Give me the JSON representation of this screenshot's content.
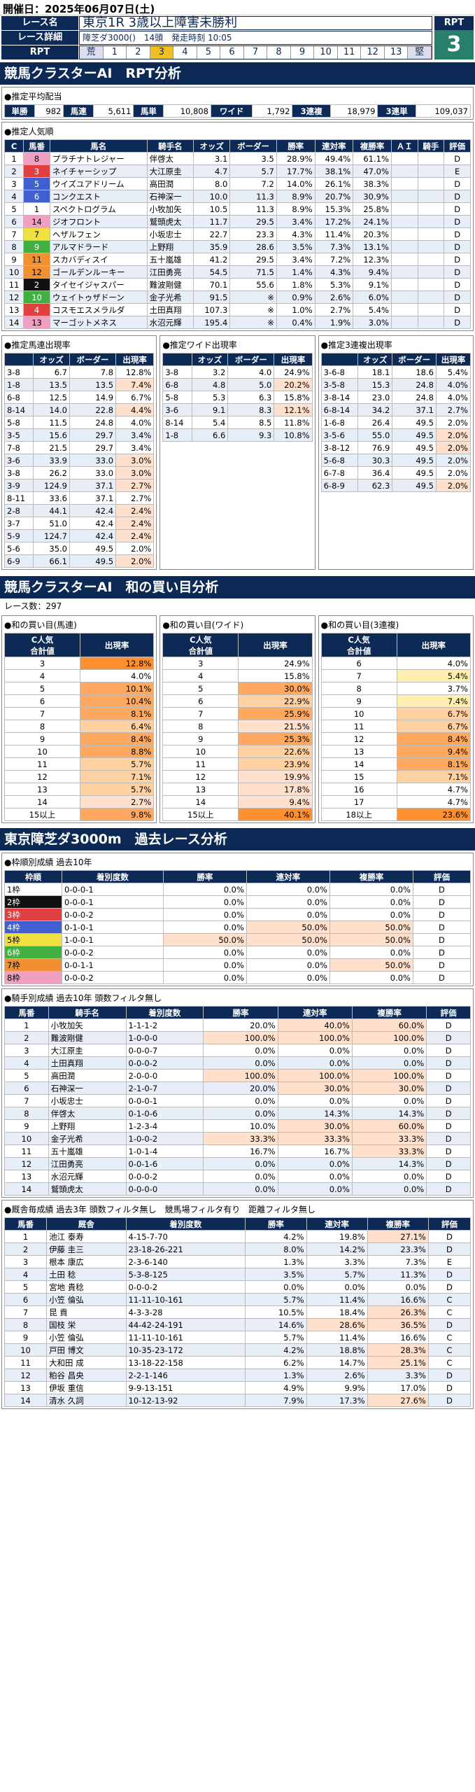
{
  "header": {
    "date": "開催日：2025年06月07日(土)"
  },
  "race": {
    "name_label": "レース名",
    "name": "東京1R 3歳以上障害未勝利",
    "detail_label": "レース詳細",
    "detail": "障芝ダ3000()　14頭　発走時刻 10:05",
    "rpt_label": "RPT",
    "rpt_cells": [
      "荒",
      "1",
      "2",
      "3",
      "4",
      "5",
      "6",
      "7",
      "8",
      "9",
      "10",
      "11",
      "12",
      "13",
      "堅"
    ],
    "rpt_value": "3"
  },
  "s1": {
    "title": "競馬クラスターAI　RPT分析"
  },
  "payout": {
    "title": "●推定平均配当",
    "items": [
      [
        "単勝",
        "982"
      ],
      [
        "馬連",
        "5,611"
      ],
      [
        "馬単",
        "10,808"
      ],
      [
        "ワイド",
        "1,792"
      ],
      [
        "3連複",
        "18,979"
      ],
      [
        "3連単",
        "109,037"
      ]
    ]
  },
  "pop": {
    "title": "●推定人気順",
    "headers": [
      "C",
      "馬番",
      "馬名",
      "騎手名",
      "オッズ",
      "ボーダー",
      "勝率",
      "連対率",
      "複勝率",
      "ＡＩ",
      "騎手",
      "評価"
    ],
    "rows": [
      [
        "1",
        "8",
        "プラチナトレジャー",
        "伴啓太",
        "3.1",
        "3.5",
        "28.9%",
        "49.4%",
        "61.1%",
        "",
        "",
        "D",
        "w8"
      ],
      [
        "2",
        "3",
        "ネイチャーシップ",
        "大江原圭",
        "4.7",
        "5.7",
        "17.7%",
        "38.1%",
        "47.0%",
        "",
        "",
        "E",
        "w3"
      ],
      [
        "3",
        "5",
        "ウイズユアドリーム",
        "高田潤",
        "8.0",
        "7.2",
        "14.0%",
        "26.1%",
        "38.3%",
        "",
        "",
        "D",
        "w4"
      ],
      [
        "4",
        "6",
        "コンクエスト",
        "石神深一",
        "10.0",
        "11.3",
        "8.9%",
        "20.7%",
        "30.9%",
        "",
        "",
        "D",
        "w4"
      ],
      [
        "5",
        "1",
        "スペクトログラム",
        "小牧加矢",
        "10.5",
        "11.3",
        "8.9%",
        "15.3%",
        "25.8%",
        "",
        "",
        "D",
        "w1"
      ],
      [
        "6",
        "14",
        "ジオフロント",
        "鷲頭虎太",
        "11.7",
        "29.5",
        "3.4%",
        "17.2%",
        "24.1%",
        "",
        "",
        "D",
        "w8"
      ],
      [
        "7",
        "7",
        "ヘザルフェン",
        "小坂忠士",
        "22.7",
        "23.3",
        "4.3%",
        "11.4%",
        "20.3%",
        "",
        "",
        "D",
        "w5"
      ],
      [
        "8",
        "9",
        "アルマドラード",
        "上野翔",
        "35.9",
        "28.6",
        "3.5%",
        "7.3%",
        "13.1%",
        "",
        "",
        "D",
        "w6"
      ],
      [
        "9",
        "11",
        "スカバディスイ",
        "五十嵐雄",
        "41.2",
        "29.5",
        "3.4%",
        "7.2%",
        "12.3%",
        "",
        "",
        "D",
        "w7"
      ],
      [
        "10",
        "12",
        "ゴールデンルーキー",
        "江田勇亮",
        "54.5",
        "71.5",
        "1.4%",
        "4.3%",
        "9.4%",
        "",
        "",
        "D",
        "w7"
      ],
      [
        "11",
        "2",
        "タイセイジャスパー",
        "難波剛健",
        "70.1",
        "55.6",
        "1.8%",
        "5.3%",
        "9.1%",
        "",
        "",
        "D",
        "w2"
      ],
      [
        "12",
        "10",
        "ウェイトゥザドーン",
        "金子光希",
        "91.5",
        "※",
        "0.9%",
        "2.6%",
        "6.0%",
        "",
        "",
        "D",
        "w6"
      ],
      [
        "13",
        "4",
        "コスモエスメラルダ",
        "土田真翔",
        "107.3",
        "※",
        "1.0%",
        "2.7%",
        "5.4%",
        "",
        "",
        "D",
        "w3"
      ],
      [
        "14",
        "13",
        "マーゴットメネス",
        "水沼元輝",
        "195.4",
        "※",
        "0.4%",
        "1.9%",
        "3.0%",
        "",
        "",
        "D",
        "w8"
      ]
    ]
  },
  "umaren": {
    "title": "●推定馬連出現率",
    "headers": [
      "",
      "オッズ",
      "ボーダー",
      "出現率"
    ],
    "rows": [
      [
        "3-8",
        "6.7",
        "7.8",
        "12.8%"
      ],
      [
        "1-8",
        "13.5",
        "13.5",
        "7.4%"
      ],
      [
        "6-8",
        "12.5",
        "14.9",
        "6.7%"
      ],
      [
        "8-14",
        "14.0",
        "22.8",
        "4.4%"
      ],
      [
        "5-8",
        "11.5",
        "24.8",
        "4.0%"
      ],
      [
        "3-5",
        "15.6",
        "29.7",
        "3.4%"
      ],
      [
        "7-8",
        "21.5",
        "29.7",
        "3.4%"
      ],
      [
        "3-6",
        "33.9",
        "33.0",
        "3.0%"
      ],
      [
        "3-8",
        "26.2",
        "33.0",
        "3.0%"
      ],
      [
        "3-9",
        "124.9",
        "37.1",
        "2.7%"
      ],
      [
        "8-11",
        "33.6",
        "37.1",
        "2.7%"
      ],
      [
        "2-8",
        "44.1",
        "42.4",
        "2.4%"
      ],
      [
        "3-7",
        "51.0",
        "42.4",
        "2.4%"
      ],
      [
        "5-9",
        "124.7",
        "42.4",
        "2.4%"
      ],
      [
        "5-6",
        "35.0",
        "49.5",
        "2.0%"
      ],
      [
        "6-9",
        "66.1",
        "49.5",
        "2.0%"
      ]
    ],
    "pink": [
      1,
      3,
      7,
      8,
      9,
      11,
      12,
      13,
      15
    ]
  },
  "wide": {
    "title": "●推定ワイド出現率",
    "headers": [
      "",
      "オッズ",
      "ボーダー",
      "出現率"
    ],
    "rows": [
      [
        "3-8",
        "3.2",
        "4.0",
        "24.9%"
      ],
      [
        "6-8",
        "4.8",
        "5.0",
        "20.2%"
      ],
      [
        "5-8",
        "5.3",
        "6.3",
        "15.8%"
      ],
      [
        "3-6",
        "9.1",
        "8.3",
        "12.1%"
      ],
      [
        "8-14",
        "5.4",
        "8.5",
        "11.8%"
      ],
      [
        "1-8",
        "6.6",
        "9.3",
        "10.8%"
      ]
    ],
    "pink": [
      1,
      3
    ]
  },
  "sanfuku": {
    "title": "●推定3連複出現率",
    "headers": [
      "",
      "オッズ",
      "ボーダー",
      "出現率"
    ],
    "rows": [
      [
        "3-6-8",
        "18.1",
        "18.6",
        "5.4%"
      ],
      [
        "3-5-8",
        "15.3",
        "24.8",
        "4.0%"
      ],
      [
        "3-8-14",
        "23.0",
        "24.8",
        "4.0%"
      ],
      [
        "6-8-14",
        "34.2",
        "37.1",
        "2.7%"
      ],
      [
        "1-6-8",
        "26.4",
        "49.5",
        "2.0%"
      ],
      [
        "3-5-6",
        "55.0",
        "49.5",
        "2.0%"
      ],
      [
        "3-8-12",
        "76.9",
        "49.5",
        "2.0%"
      ],
      [
        "5-6-8",
        "30.3",
        "49.5",
        "2.0%"
      ],
      [
        "6-7-8",
        "36.4",
        "49.5",
        "2.0%"
      ],
      [
        "6-8-9",
        "62.3",
        "49.5",
        "2.0%"
      ]
    ],
    "pink": [
      5,
      6,
      9
    ]
  },
  "s2": {
    "title": "競馬クラスターAI　和の買い目分析",
    "count": "レース数：297"
  },
  "wa": [
    {
      "title": "●和の買い目(馬連)",
      "h1": "C人気\n合計値",
      "h2": "出現率",
      "rows": [
        [
          "3",
          "12.8%",
          "p4"
        ],
        [
          "4",
          "4.0%",
          ""
        ],
        [
          "5",
          "10.1%",
          "p3"
        ],
        [
          "6",
          "10.4%",
          "p3"
        ],
        [
          "7",
          "8.1%",
          "p3"
        ],
        [
          "8",
          "6.4%",
          "p2"
        ],
        [
          "9",
          "8.4%",
          "p3"
        ],
        [
          "10",
          "8.8%",
          "p3"
        ],
        [
          "11",
          "5.7%",
          "p2"
        ],
        [
          "12",
          "7.1%",
          "p2"
        ],
        [
          "13",
          "5.7%",
          "p2"
        ],
        [
          "14",
          "2.7%",
          "p1"
        ],
        [
          "15以上",
          "9.8%",
          "p3"
        ]
      ]
    },
    {
      "title": "●和の買い目(ワイド)",
      "h1": "C人気\n合計値",
      "h2": "出現率",
      "rows": [
        [
          "3",
          "24.9%",
          ""
        ],
        [
          "4",
          "15.8%",
          ""
        ],
        [
          "5",
          "30.0%",
          "p3"
        ],
        [
          "6",
          "22.9%",
          "p2"
        ],
        [
          "7",
          "25.9%",
          "p3"
        ],
        [
          "8",
          "21.5%",
          "p1"
        ],
        [
          "9",
          "25.3%",
          "p3"
        ],
        [
          "10",
          "22.6%",
          "p2"
        ],
        [
          "11",
          "23.9%",
          "p2"
        ],
        [
          "12",
          "19.9%",
          "p1"
        ],
        [
          "13",
          "17.8%",
          "p1"
        ],
        [
          "14",
          "9.4%",
          "p1"
        ],
        [
          "15以上",
          "40.1%",
          "p4"
        ]
      ]
    },
    {
      "title": "●和の買い目(3連複)",
      "h1": "C人気\n合計値",
      "h2": "出現率",
      "rows": [
        [
          "6",
          "4.0%",
          ""
        ],
        [
          "7",
          "5.4%",
          "y1"
        ],
        [
          "8",
          "3.7%",
          ""
        ],
        [
          "9",
          "7.4%",
          "y1"
        ],
        [
          "10",
          "6.7%",
          "p2"
        ],
        [
          "11",
          "6.7%",
          "p2"
        ],
        [
          "12",
          "8.4%",
          "p3"
        ],
        [
          "13",
          "9.4%",
          "p3"
        ],
        [
          "14",
          "8.1%",
          "p3"
        ],
        [
          "15",
          "7.1%",
          "p2"
        ],
        [
          "16",
          "4.7%",
          ""
        ],
        [
          "17",
          "4.7%",
          ""
        ],
        [
          "18以上",
          "23.6%",
          "p4"
        ]
      ]
    }
  ],
  "s3": {
    "title": "東京障芝ダ3000m　過去レース分析"
  },
  "waku": {
    "title": "●枠順別成績 過去10年",
    "headers": [
      "枠順",
      "着別度数",
      "勝率",
      "連対率",
      "複勝率",
      "評価"
    ],
    "rows": [
      [
        "1枠",
        "0-0-0-1",
        "0.0%",
        "0.0%",
        "0.0%",
        "D",
        "w1"
      ],
      [
        "2枠",
        "0-0-0-1",
        "0.0%",
        "0.0%",
        "0.0%",
        "D",
        "w2"
      ],
      [
        "3枠",
        "0-0-0-2",
        "0.0%",
        "0.0%",
        "0.0%",
        "D",
        "w3"
      ],
      [
        "4枠",
        "0-1-0-1",
        "0.0%",
        "50.0%",
        "50.0%",
        "D",
        "w4"
      ],
      [
        "5枠",
        "1-0-0-1",
        "50.0%",
        "50.0%",
        "50.0%",
        "D",
        "w5"
      ],
      [
        "6枠",
        "0-0-0-2",
        "0.0%",
        "0.0%",
        "0.0%",
        "D",
        "w6"
      ],
      [
        "7枠",
        "0-0-1-1",
        "0.0%",
        "0.0%",
        "50.0%",
        "D",
        "w7"
      ],
      [
        "8枠",
        "0-0-0-2",
        "0.0%",
        "0.0%",
        "0.0%",
        "D",
        "w8"
      ]
    ]
  },
  "jockey": {
    "title": "●騎手別成績 過去10年 頭数フィルタ無し",
    "headers": [
      "馬番",
      "騎手名",
      "着別度数",
      "勝率",
      "連対率",
      "複勝率",
      "評価"
    ],
    "rows": [
      [
        "1",
        "小牧加矢",
        "1-1-1-2",
        "20.0%",
        "40.0%",
        "60.0%",
        "D"
      ],
      [
        "2",
        "難波剛健",
        "1-0-0-0",
        "100.0%",
        "100.0%",
        "100.0%",
        "D"
      ],
      [
        "3",
        "大江原圭",
        "0-0-0-7",
        "0.0%",
        "0.0%",
        "0.0%",
        "D"
      ],
      [
        "4",
        "土田真翔",
        "0-0-0-2",
        "0.0%",
        "0.0%",
        "0.0%",
        "D"
      ],
      [
        "5",
        "高田潤",
        "2-0-0-0",
        "100.0%",
        "100.0%",
        "100.0%",
        "D"
      ],
      [
        "6",
        "石神深一",
        "2-1-0-7",
        "20.0%",
        "30.0%",
        "30.0%",
        "D"
      ],
      [
        "7",
        "小坂忠士",
        "0-0-0-1",
        "0.0%",
        "0.0%",
        "0.0%",
        "D"
      ],
      [
        "8",
        "伴啓太",
        "0-1-0-6",
        "0.0%",
        "14.3%",
        "14.3%",
        "D"
      ],
      [
        "9",
        "上野翔",
        "1-2-3-4",
        "10.0%",
        "30.0%",
        "60.0%",
        "D"
      ],
      [
        "10",
        "金子光希",
        "1-0-0-2",
        "33.3%",
        "33.3%",
        "33.3%",
        "D"
      ],
      [
        "11",
        "五十嵐雄",
        "1-0-1-4",
        "16.7%",
        "16.7%",
        "33.3%",
        "D"
      ],
      [
        "12",
        "江田勇亮",
        "0-0-1-6",
        "0.0%",
        "0.0%",
        "14.3%",
        "D"
      ],
      [
        "13",
        "水沼元輝",
        "0-0-0-2",
        "0.0%",
        "0.0%",
        "0.0%",
        "D"
      ],
      [
        "14",
        "鷲頭虎太",
        "0-0-0-0",
        "0.0%",
        "0.0%",
        "0.0%",
        "D"
      ]
    ]
  },
  "sire": {
    "title": "●厩舎毎成績 過去3年 頭数フィルタ無し　競馬場フィルタ有り　距離フィルタ無し",
    "headers": [
      "馬番",
      "厩舎",
      "着別度数",
      "勝率",
      "連対率",
      "複勝率",
      "評価"
    ],
    "rows": [
      [
        "1",
        "池江 泰寿",
        "4-15-7-70",
        "4.2%",
        "19.8%",
        "27.1%",
        "D"
      ],
      [
        "2",
        "伊藤 圭三",
        "23-18-26-221",
        "8.0%",
        "14.2%",
        "23.3%",
        "D"
      ],
      [
        "3",
        "根本 康広",
        "2-3-6-140",
        "1.3%",
        "3.3%",
        "7.3%",
        "E"
      ],
      [
        "4",
        "土田 稔",
        "5-3-8-125",
        "3.5%",
        "5.7%",
        "11.3%",
        "D"
      ],
      [
        "5",
        "宮地 貴稔",
        "0-0-0-2",
        "0.0%",
        "0.0%",
        "0.0%",
        "D"
      ],
      [
        "6",
        "小笠 倫弘",
        "11-11-10-161",
        "5.7%",
        "11.4%",
        "16.6%",
        "C"
      ],
      [
        "7",
        "昆 貢",
        "4-3-3-28",
        "10.5%",
        "18.4%",
        "26.3%",
        "C"
      ],
      [
        "8",
        "国枝 栄",
        "44-42-24-191",
        "14.6%",
        "28.6%",
        "36.5%",
        "D"
      ],
      [
        "9",
        "小笠 倫弘",
        "11-11-10-161",
        "5.7%",
        "11.4%",
        "16.6%",
        "C"
      ],
      [
        "10",
        "戸田 博文",
        "10-35-23-172",
        "4.2%",
        "18.8%",
        "28.3%",
        "C"
      ],
      [
        "11",
        "大和田 成",
        "13-18-22-158",
        "6.2%",
        "14.7%",
        "25.1%",
        "C"
      ],
      [
        "12",
        "粕谷 昌央",
        "2-2-1-146",
        "1.3%",
        "2.6%",
        "3.3%",
        "D"
      ],
      [
        "13",
        "伊坂 重信",
        "9-9-13-151",
        "4.9%",
        "9.9%",
        "17.0%",
        "D"
      ],
      [
        "14",
        "清水 久詞",
        "10-12-13-92",
        "7.9%",
        "17.3%",
        "27.6%",
        "D"
      ]
    ]
  }
}
